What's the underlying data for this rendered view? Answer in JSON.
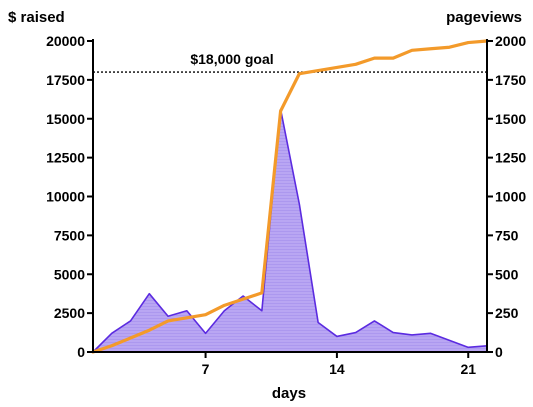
{
  "chart_data": {
    "type": "line",
    "title": "",
    "xlabel": "days",
    "ylabel_left": "$ raised",
    "ylabel_right": "pageviews",
    "xlim": [
      1,
      22
    ],
    "ylim_left": [
      0,
      20000
    ],
    "ylim_right": [
      0,
      2000
    ],
    "x_ticks": [
      7,
      14,
      21
    ],
    "y_ticks_left": [
      0,
      2500,
      5000,
      7500,
      10000,
      12500,
      15000,
      17500,
      20000
    ],
    "y_ticks_right": [
      0,
      250,
      500,
      750,
      1000,
      1250,
      1500,
      1750,
      2000
    ],
    "grid": false,
    "legend": "none",
    "annotations": [
      {
        "label": "$18,000 goal",
        "y": 18000,
        "axis": "left",
        "style": "dotted-line"
      }
    ],
    "series": [
      {
        "axis": "right",
        "style": "area",
        "color": "#5b2be0",
        "fill": "#b8a2f2",
        "x": [
          1,
          2,
          3,
          4,
          5,
          6,
          7,
          8,
          9,
          10,
          11,
          12,
          13,
          14,
          15,
          16,
          17,
          18,
          19,
          20,
          21,
          22
        ],
        "values": [
          0,
          120,
          200,
          375,
          230,
          265,
          120,
          265,
          360,
          265,
          1560,
          950,
          190,
          100,
          125,
          200,
          125,
          110,
          120,
          75,
          30,
          40
        ]
      },
      {
        "axis": "left",
        "style": "line",
        "color": "#f39a2a",
        "x": [
          1,
          2,
          3,
          4,
          5,
          6,
          7,
          8,
          9,
          10,
          11,
          12,
          13,
          14,
          15,
          16,
          17,
          18,
          19,
          20,
          21,
          22
        ],
        "values": [
          0,
          400,
          900,
          1400,
          2000,
          2200,
          2400,
          3000,
          3400,
          3800,
          15500,
          17900,
          18100,
          18300,
          18500,
          18900,
          18900,
          19400,
          19500,
          19600,
          19900,
          20000
        ]
      }
    ]
  }
}
